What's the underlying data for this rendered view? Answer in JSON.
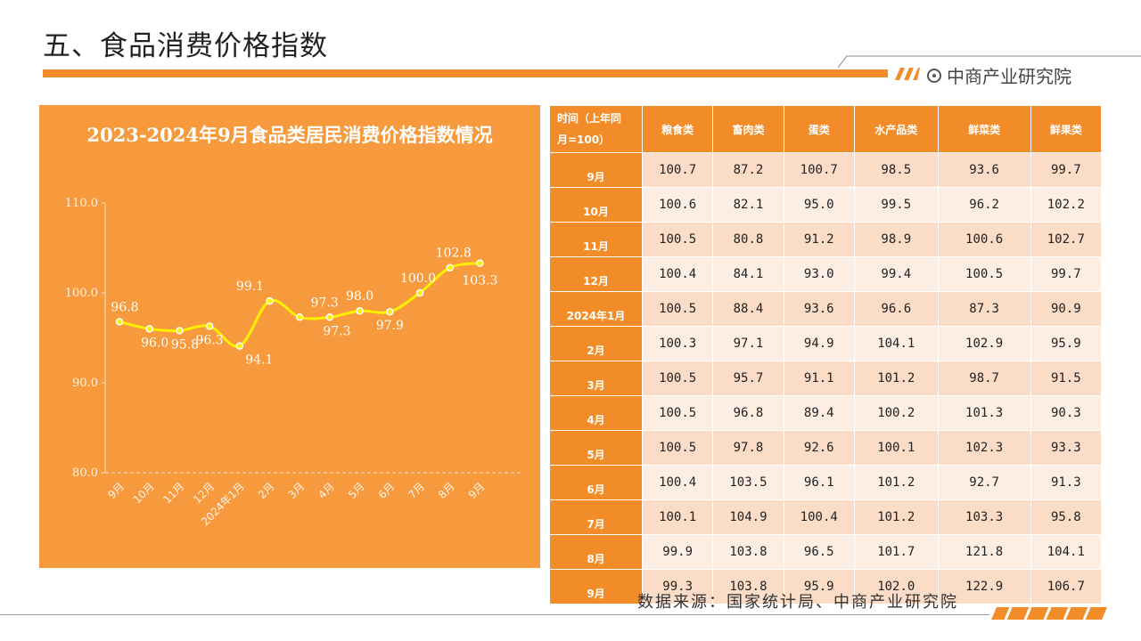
{
  "page": {
    "title": "五、食品消费价格指数",
    "brand": "中商产业研究院",
    "source": "数据来源：国家统计局、中商产业研究院"
  },
  "colors": {
    "accent": "#f28c28",
    "panel": "#f79a3e",
    "line": "#ffef00",
    "row_odd": "#fbdcc7",
    "row_even": "#fdeee4"
  },
  "chart_data": {
    "type": "line",
    "title": "2023-2024年9月食品类居民消费价格指数情况",
    "xlabel": "",
    "ylabel": "",
    "ylim": [
      80.0,
      110.0
    ],
    "yticks": [
      "110.0",
      "100.0",
      "90.0",
      "80.0"
    ],
    "categories": [
      "9月",
      "10月",
      "11月",
      "12月",
      "2024年1月",
      "2月",
      "3月",
      "4月",
      "5月",
      "6月",
      "7月",
      "8月",
      "9月"
    ],
    "series": [
      {
        "values": [
          96.8,
          96.0,
          95.8,
          96.3,
          94.1,
          99.1,
          97.3,
          97.3,
          98.0,
          97.9,
          100.0,
          102.8,
          103.3
        ],
        "labels": [
          "96.8",
          "96.0",
          "95.8",
          "96.3",
          "94.1",
          "99.1",
          "97.3",
          "97.3",
          "98.0",
          "97.9",
          "100.0",
          "102.8",
          "103.3"
        ]
      }
    ],
    "grid": false,
    "legend": "none"
  },
  "table": {
    "header_first": [
      "时间（上年同",
      "月=100）"
    ],
    "columns": [
      "粮食类",
      "畜肉类",
      "蛋类",
      "水产品类",
      "鲜菜类",
      "鲜果类"
    ],
    "rows": [
      {
        "month": "9月",
        "values": [
          "100.7",
          "87.2",
          "100.7",
          "98.5",
          "93.6",
          "99.7"
        ]
      },
      {
        "month": "10月",
        "values": [
          "100.6",
          "82.1",
          "95.0",
          "99.5",
          "96.2",
          "102.2"
        ]
      },
      {
        "month": "11月",
        "values": [
          "100.5",
          "80.8",
          "91.2",
          "98.9",
          "100.6",
          "102.7"
        ]
      },
      {
        "month": "12月",
        "values": [
          "100.4",
          "84.1",
          "93.0",
          "99.4",
          "100.5",
          "99.7"
        ]
      },
      {
        "month": "2024年1月",
        "values": [
          "100.5",
          "88.4",
          "93.6",
          "96.6",
          "87.3",
          "90.9"
        ]
      },
      {
        "month": "2月",
        "values": [
          "100.3",
          "97.1",
          "94.9",
          "104.1",
          "102.9",
          "95.9"
        ]
      },
      {
        "month": "3月",
        "values": [
          "100.5",
          "95.7",
          "91.1",
          "101.2",
          "98.7",
          "91.5"
        ]
      },
      {
        "month": "4月",
        "values": [
          "100.5",
          "96.8",
          "89.4",
          "100.2",
          "101.3",
          "90.3"
        ]
      },
      {
        "month": "5月",
        "values": [
          "100.5",
          "97.8",
          "92.6",
          "100.1",
          "102.3",
          "93.3"
        ]
      },
      {
        "month": "6月",
        "values": [
          "100.4",
          "103.5",
          "96.1",
          "101.2",
          "92.7",
          "91.3"
        ]
      },
      {
        "month": "7月",
        "values": [
          "100.1",
          "104.9",
          "100.4",
          "101.2",
          "103.3",
          "95.8"
        ]
      },
      {
        "month": "8月",
        "values": [
          "99.9",
          "103.8",
          "96.5",
          "101.7",
          "121.8",
          "104.1"
        ]
      },
      {
        "month": "9月",
        "values": [
          "99.3",
          "103.8",
          "95.9",
          "102.0",
          "122.9",
          "106.7"
        ]
      }
    ]
  }
}
